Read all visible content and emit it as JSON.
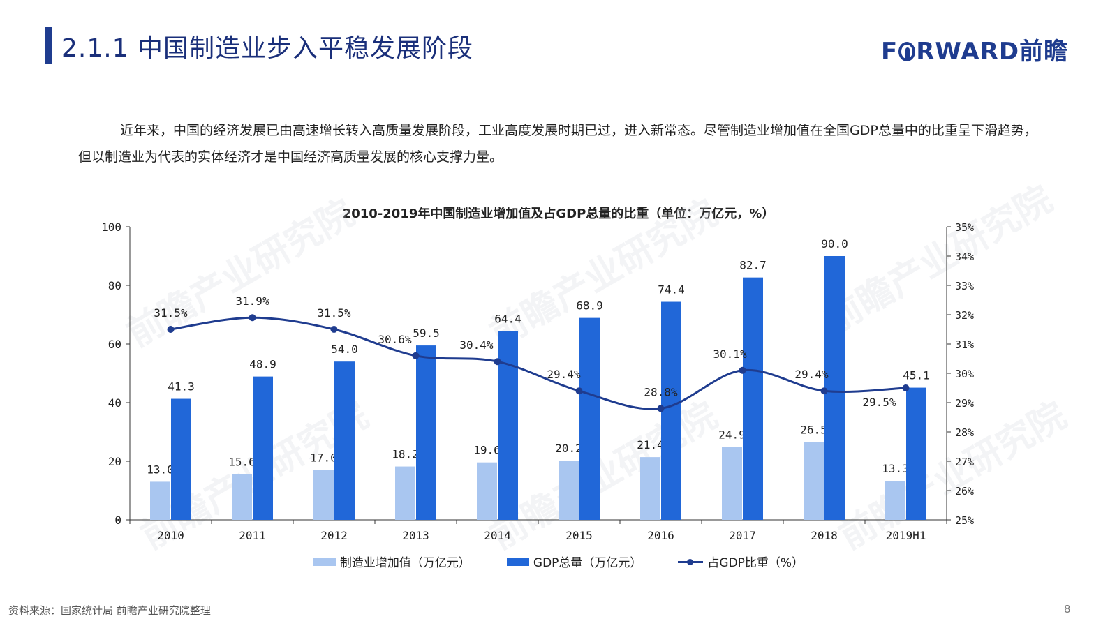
{
  "header": {
    "title": "2.1.1 中国制造业步入平稳发展阶段",
    "logo_left": "F",
    "logo_right": "RWARD前瞻"
  },
  "intro_text": "近年来，中国的经济发展已由高速增长转入高质量发展阶段，工业高度发展时期已过，进入新常态。尽管制造业增加值在全国GDP总量中的比重呈下滑趋势，但以制造业为代表的实体经济才是中国经济高质量发展的核心支撑力量。",
  "watermark_text": "前瞻产业研究院",
  "source_text": "资料来源：国家统计局 前瞻产业研究院整理",
  "page_number": "8",
  "colors": {
    "manufacturing": "#a9c6f0",
    "gdp": "#2167d8",
    "share": "#1f3c8f",
    "title_accent": "#1f3c8f"
  },
  "chart_data": {
    "type": "bar",
    "title": "2010-2019年中国制造业增加值及占GDP总量的比重（单位：万亿元，%）",
    "categories": [
      "2010",
      "2011",
      "2012",
      "2013",
      "2014",
      "2015",
      "2016",
      "2017",
      "2018",
      "2019H1"
    ],
    "series": [
      {
        "name": "制造业增加值（万亿元）",
        "type": "bar",
        "axis": "left",
        "values": [
          13.0,
          15.6,
          17.0,
          18.2,
          19.6,
          20.2,
          21.4,
          24.9,
          26.5,
          13.3
        ],
        "labels": [
          "13.0",
          "15.6",
          "17.0",
          "18.2",
          "19.6",
          "20.2",
          "21.4",
          "24.9",
          "26.5",
          "13.3"
        ]
      },
      {
        "name": "GDP总量（万亿元）",
        "type": "bar",
        "axis": "left",
        "values": [
          41.3,
          48.9,
          54.0,
          59.5,
          64.4,
          68.9,
          74.4,
          82.7,
          90.0,
          45.1
        ],
        "labels": [
          "41.3",
          "48.9",
          "54.0",
          "59.5",
          "64.4",
          "68.9",
          "74.4",
          "82.7",
          "90.0",
          "45.1"
        ]
      },
      {
        "name": "占GDP比重（%）",
        "type": "line",
        "axis": "right",
        "values": [
          31.5,
          31.9,
          31.5,
          30.6,
          30.4,
          29.4,
          28.8,
          30.1,
          29.4,
          29.5
        ],
        "labels": [
          "31.5%",
          "31.9%",
          "31.5%",
          "30.6%",
          "30.4%",
          "29.4%",
          "28.8%",
          "30.1%",
          "29.4%",
          "29.5%"
        ]
      }
    ],
    "y_left": {
      "ylim": [
        0,
        100
      ],
      "ticks": [
        "0",
        "20",
        "40",
        "60",
        "80",
        "100"
      ]
    },
    "y_right": {
      "ylim": [
        25,
        35
      ],
      "ticks": [
        "25%",
        "26%",
        "27%",
        "28%",
        "29%",
        "30%",
        "31%",
        "32%",
        "33%",
        "34%",
        "35%"
      ]
    },
    "grid": false,
    "legend_position": "bottom"
  }
}
